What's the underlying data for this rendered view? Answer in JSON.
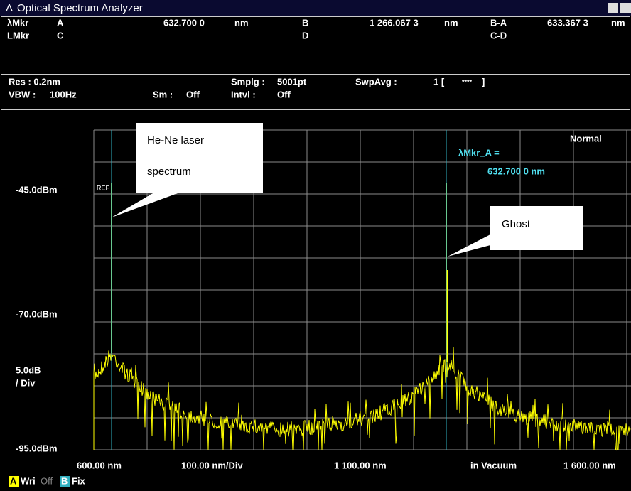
{
  "window": {
    "title": "Optical Spectrum Analyzer"
  },
  "markers": {
    "row1": [
      "λMkr",
      "A",
      "632.700 0",
      "nm",
      "B",
      "1 266.067 3",
      "nm",
      "B-A",
      "633.367 3",
      "nm"
    ],
    "row2": [
      "LMkr",
      "C",
      "D",
      "C-D"
    ]
  },
  "settings": {
    "row1": [
      "Res : 0.2nm",
      "Smplg :",
      "5001pt",
      "SwpAvg :",
      "1 [",
      "****",
      "]"
    ],
    "row2": [
      "VBW :",
      "100Hz",
      "Sm :",
      "Off",
      "Intvl :",
      "Off"
    ]
  },
  "plot": {
    "mode": "Normal",
    "ref": "REF",
    "marker_label": "λMkr_A =",
    "marker_value": "632.700 0 nm",
    "y_labels": [
      "-45.0dBm",
      "-70.0dBm",
      "5.0dB",
      "/ Div",
      "-95.0dBm"
    ],
    "x_labels": [
      "600.00 nm",
      "100.00 nm/Div",
      "1 100.00 nm",
      "in Vacuum",
      "1 600.00 nm"
    ]
  },
  "callouts": [
    {
      "lines": [
        "He-Ne laser",
        "spectrum"
      ]
    },
    {
      "lines": [
        "Ghost"
      ]
    }
  ],
  "traces": [
    {
      "letter": "A",
      "mode": "Wri",
      "state": "Off"
    },
    {
      "letter": "B",
      "mode": "Fix"
    }
  ]
}
